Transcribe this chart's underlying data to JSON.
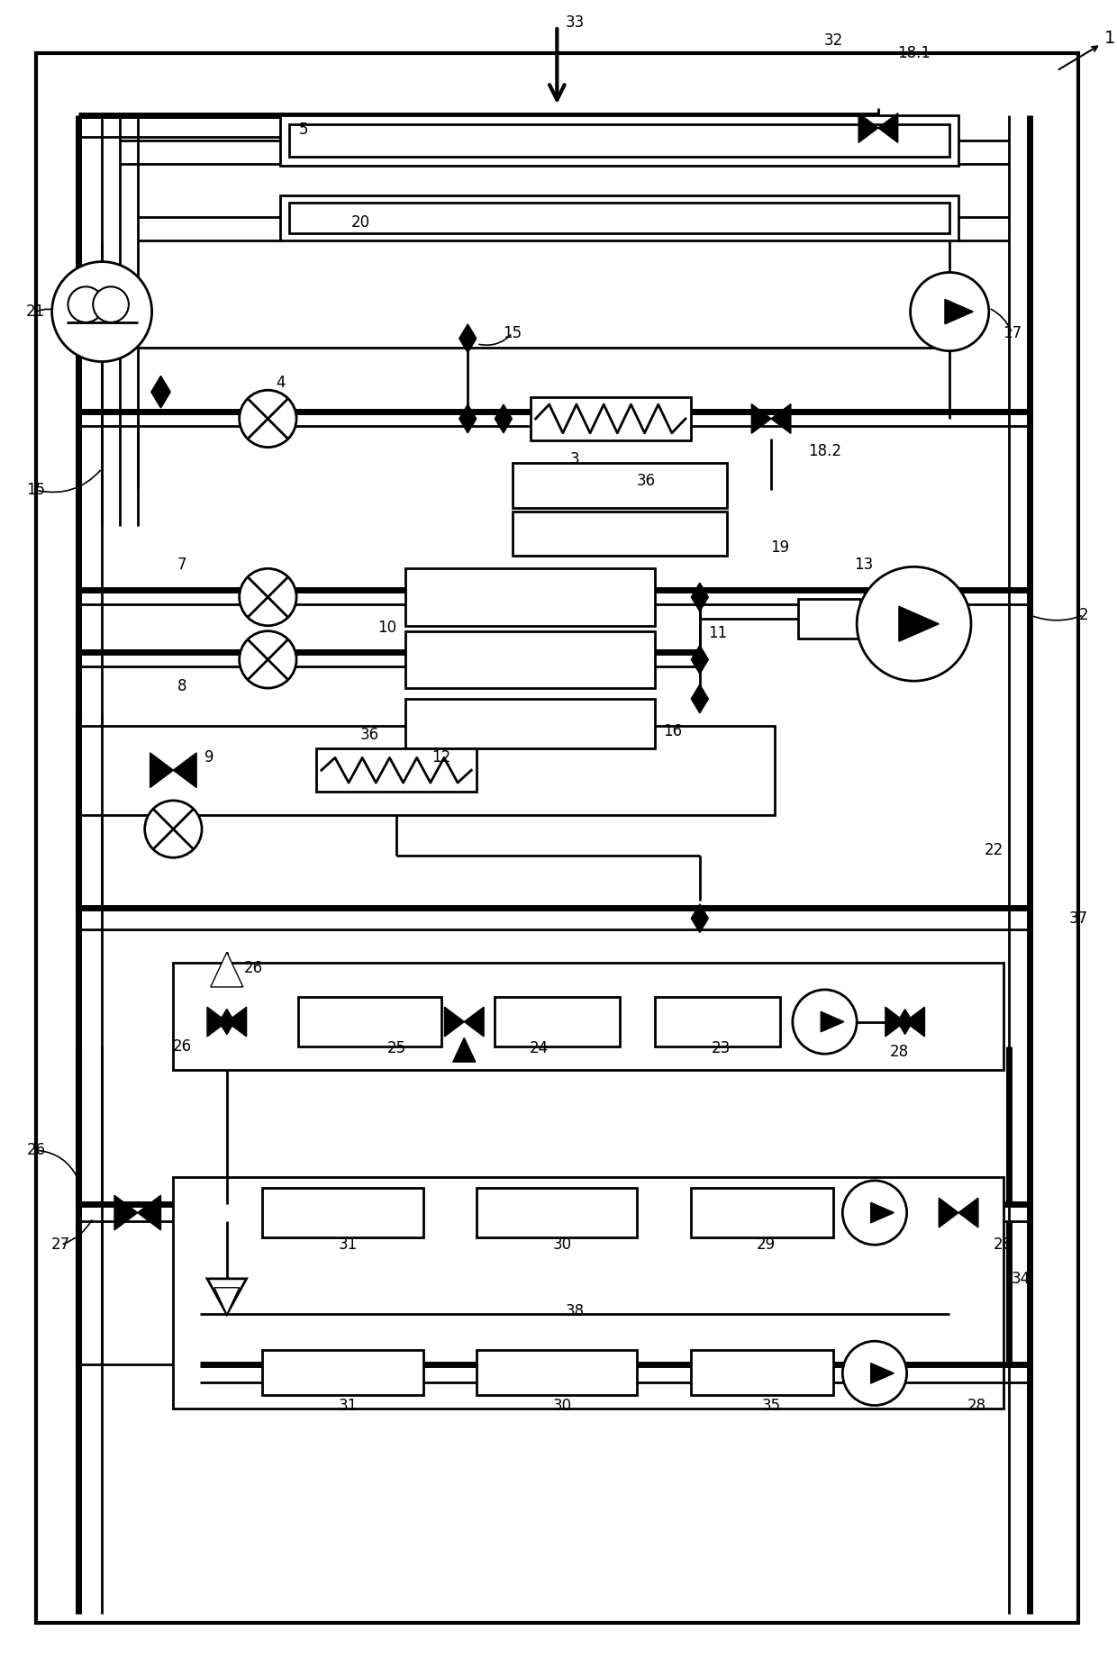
{
  "bg": "#ffffff",
  "lc": "#000000",
  "lw": 2.0,
  "tlw": 5.0,
  "fw": 12.4,
  "fh": 18.61,
  "dpi": 100
}
